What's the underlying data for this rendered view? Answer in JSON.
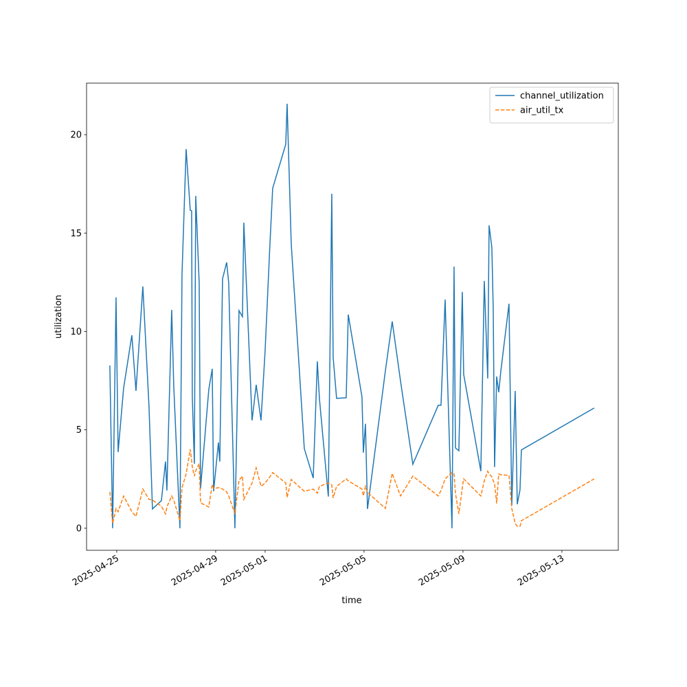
{
  "chart_data": {
    "type": "line",
    "xlabel": "time",
    "ylabel": "utilization",
    "legend": "upper right",
    "grid": false,
    "xlim": [
      "2025-04-23T18:43",
      "2025-05-15T06:43"
    ],
    "xticks": [
      "2025-04-25",
      "2025-04-29",
      "2025-05-01",
      "2025-05-05",
      "2025-05-09",
      "2025-05-13"
    ],
    "ylim": [
      -1.12,
      22.62
    ],
    "yticks": [
      0,
      5,
      10,
      15,
      20
    ],
    "x": [
      "2025-04-24T17:20",
      "2025-04-24T20:00",
      "2025-04-24T23:20",
      "2025-04-25T01:20",
      "2025-04-25T06:40",
      "2025-04-25T14:40",
      "2025-04-25T18:40",
      "2025-04-26T01:20",
      "2025-04-26T07:20",
      "2025-04-26T10:40",
      "2025-04-26T19:20",
      "2025-04-26T23:20",
      "2025-04-27T00:40",
      "2025-04-27T05:20",
      "2025-04-27T07:20",
      "2025-04-27T13:20",
      "2025-04-27T15:20",
      "2025-04-27T19:20",
      "2025-04-27T23:20",
      "2025-04-28T00:40",
      "2025-04-28T01:20",
      "2025-04-28T03:20",
      "2025-04-28T04:40",
      "2025-04-28T08:00",
      "2025-04-28T09:20",
      "2025-04-28T17:20",
      "2025-04-28T20:40",
      "2025-04-28T22:00",
      "2025-04-29T02:40",
      "2025-04-29T04:00",
      "2025-04-29T06:40",
      "2025-04-29T10:40",
      "2025-04-29T12:40",
      "2025-04-29T18:40",
      "2025-04-29T22:40",
      "2025-04-30T02:00",
      "2025-04-30T03:20",
      "2025-04-30T11:20",
      "2025-04-30T15:20",
      "2025-04-30T20:00",
      "2025-05-01T00:00",
      "2025-05-01T04:40",
      "2025-05-01T07:20",
      "2025-05-01T20:00",
      "2025-05-01T21:20",
      "2025-05-02T01:20",
      "2025-05-02T08:40",
      "2025-05-02T14:00",
      "2025-05-02T22:40",
      "2025-05-03T02:40",
      "2025-05-03T04:40",
      "2025-05-03T13:20",
      "2025-05-03T16:40",
      "2025-05-03T18:00",
      "2025-05-03T21:20",
      "2025-05-04T06:40",
      "2025-05-04T08:40",
      "2025-05-04T22:00",
      "2025-05-04T23:20",
      "2025-05-05T01:20",
      "2025-05-05T03:20",
      "2025-05-05T20:40",
      "2025-05-06T03:20",
      "2025-05-06T11:20",
      "2025-05-06T23:20",
      "2025-05-08T00:00",
      "2025-05-08T02:40",
      "2025-05-08T06:40",
      "2025-05-08T13:20",
      "2025-05-08T15:20",
      "2025-05-08T16:40",
      "2025-05-08T20:00",
      "2025-05-08T23:20",
      "2025-05-09T00:40",
      "2025-05-09T17:20",
      "2025-05-09T20:40",
      "2025-05-10T00:00",
      "2025-05-10T01:20",
      "2025-05-10T04:00",
      "2025-05-10T05:20",
      "2025-05-10T06:40",
      "2025-05-10T08:40",
      "2025-05-10T10:40",
      "2025-05-10T12:40",
      "2025-05-10T20:40",
      "2025-05-10T23:20",
      "2025-05-11T02:40",
      "2025-05-11T04:40",
      "2025-05-11T07:20",
      "2025-05-11T08:40",
      "2025-05-14T07:20"
    ],
    "series": [
      {
        "name": "channel_utilization",
        "color": "#1f77b4",
        "style": "solid",
        "values": [
          8.27,
          0.0,
          11.73,
          3.87,
          7.12,
          9.81,
          6.98,
          12.29,
          6.18,
          0.98,
          1.4,
          3.39,
          1.92,
          11.1,
          7.22,
          0.0,
          12.88,
          19.27,
          16.16,
          16.13,
          6.67,
          3.28,
          16.89,
          12.46,
          2.02,
          7.05,
          8.1,
          1.88,
          4.36,
          3.39,
          12.67,
          13.51,
          12.46,
          0.0,
          11.06,
          10.75,
          15.53,
          5.48,
          7.29,
          5.48,
          9.04,
          14.45,
          17.28,
          19.51,
          21.57,
          14.45,
          8.48,
          4.05,
          2.55,
          8.48,
          6.6,
          1.61,
          17.0,
          8.69,
          6.6,
          6.63,
          10.86,
          6.67,
          3.84,
          5.31,
          0.98,
          7.99,
          10.51,
          7.5,
          3.25,
          6.25,
          6.25,
          11.62,
          0.0,
          13.3,
          4.08,
          3.94,
          12.01,
          7.82,
          2.9,
          12.57,
          7.61,
          15.39,
          14.28,
          11.17,
          3.11,
          7.71,
          6.91,
          7.96,
          11.41,
          1.15,
          6.98,
          1.22,
          1.95,
          3.98,
          6.11
        ]
      },
      {
        "name": "air_util_tx",
        "color": "#ff7f0e",
        "style": "dashed",
        "values": [
          1.85,
          0.24,
          1.0,
          0.84,
          1.64,
          0.84,
          0.6,
          1.99,
          1.47,
          1.43,
          1.12,
          0.73,
          1.08,
          1.64,
          1.43,
          0.38,
          2.06,
          2.76,
          4.01,
          3.46,
          3.11,
          2.65,
          2.93,
          3.28,
          1.29,
          1.08,
          2.23,
          2.02,
          2.06,
          2.06,
          1.99,
          1.85,
          1.64,
          0.73,
          2.44,
          2.65,
          1.47,
          2.3,
          3.07,
          2.13,
          2.3,
          2.62,
          2.83,
          2.3,
          1.57,
          2.48,
          2.13,
          1.88,
          1.99,
          1.78,
          2.13,
          2.3,
          2.2,
          1.54,
          2.13,
          2.51,
          2.41,
          1.99,
          1.64,
          2.13,
          1.82,
          1.01,
          2.79,
          1.64,
          2.65,
          1.64,
          1.92,
          2.51,
          2.83,
          2.76,
          1.78,
          0.73,
          2.06,
          2.51,
          1.64,
          2.41,
          2.9,
          2.76,
          2.62,
          2.41,
          2.27,
          1.26,
          2.76,
          2.72,
          2.69,
          1.01,
          0.24,
          0.1,
          0.1,
          0.38,
          2.51
        ]
      }
    ]
  }
}
